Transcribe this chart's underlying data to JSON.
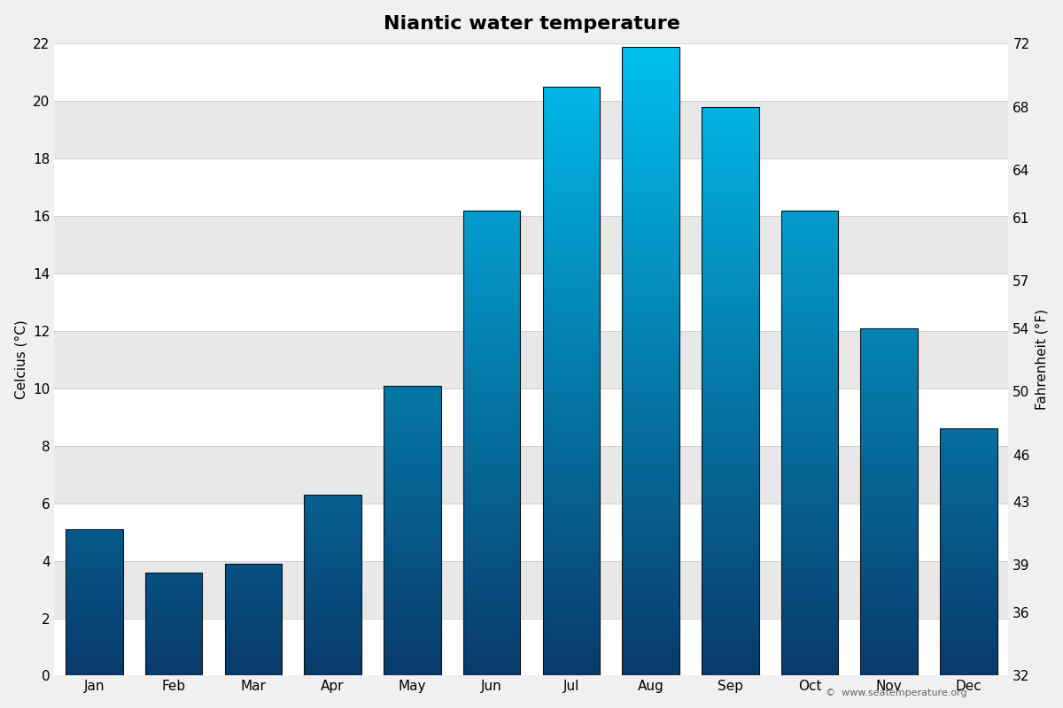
{
  "title": "Niantic water temperature",
  "months": [
    "Jan",
    "Feb",
    "Mar",
    "Apr",
    "May",
    "Jun",
    "Jul",
    "Aug",
    "Sep",
    "Oct",
    "Nov",
    "Dec"
  ],
  "celsius": [
    5.1,
    3.6,
    3.9,
    6.3,
    10.1,
    16.2,
    20.5,
    21.9,
    19.8,
    16.2,
    12.1,
    8.6
  ],
  "ylim_celsius": [
    0,
    22
  ],
  "ylim_fahrenheit": [
    32,
    72
  ],
  "yticks_celsius": [
    0,
    2,
    4,
    6,
    8,
    10,
    12,
    14,
    16,
    18,
    20,
    22
  ],
  "yticks_fahrenheit": [
    32,
    36,
    39,
    43,
    46,
    50,
    54,
    57,
    61,
    64,
    68,
    72
  ],
  "ylabel_left": "Celcius (°C)",
  "ylabel_right": "Fahrenheit (°F)",
  "color_cold": "#083a6b",
  "color_warm": "#00c0f0",
  "background_color": "#f0f0f0",
  "band_color_white": "#ffffff",
  "band_color_gray": "#e8e8e8",
  "bar_border_color": "#111111",
  "copyright_text": "©  www.seatemperature.org",
  "title_fontsize": 16,
  "label_fontsize": 11,
  "tick_fontsize": 11,
  "bar_width": 0.72
}
